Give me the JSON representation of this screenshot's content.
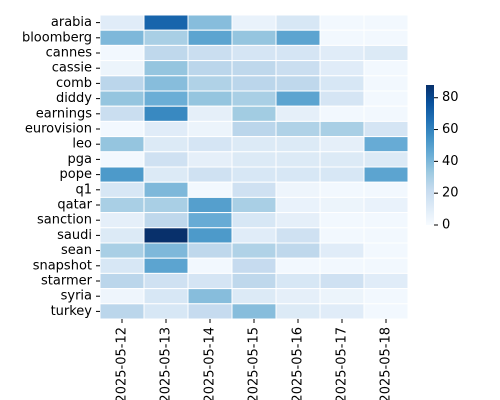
{
  "chart_data": {
    "type": "heatmap",
    "title": "",
    "xlabel": "",
    "ylabel": "",
    "x": [
      "2025-05-12",
      "2025-05-13",
      "2025-05-14",
      "2025-05-15",
      "2025-05-16",
      "2025-05-17",
      "2025-05-18"
    ],
    "y": [
      "arabia",
      "bloomberg",
      "cannes",
      "cassie",
      "comb",
      "diddy",
      "earnings",
      "eurovision",
      "leo",
      "pga",
      "pope",
      "q1",
      "qatar",
      "sanction",
      "saudi",
      "sean",
      "snapshot",
      "starmer",
      "syria",
      "turkey"
    ],
    "values": [
      [
        10,
        70,
        38,
        6,
        14,
        2,
        2
      ],
      [
        40,
        30,
        48,
        35,
        48,
        2,
        2
      ],
      [
        2,
        24,
        20,
        15,
        15,
        10,
        12
      ],
      [
        5,
        35,
        25,
        24,
        20,
        10,
        2
      ],
      [
        25,
        38,
        28,
        25,
        24,
        14,
        2
      ],
      [
        35,
        44,
        35,
        30,
        48,
        15,
        2
      ],
      [
        20,
        58,
        8,
        32,
        8,
        2,
        2
      ],
      [
        2,
        10,
        5,
        25,
        28,
        30,
        15
      ],
      [
        35,
        12,
        15,
        12,
        12,
        8,
        45
      ],
      [
        2,
        18,
        8,
        12,
        12,
        12,
        12
      ],
      [
        52,
        12,
        18,
        14,
        14,
        14,
        48
      ],
      [
        14,
        40,
        2,
        18,
        4,
        2,
        2
      ],
      [
        30,
        30,
        50,
        30,
        6,
        5,
        6
      ],
      [
        8,
        24,
        45,
        14,
        8,
        2,
        2
      ],
      [
        12,
        88,
        52,
        10,
        18,
        2,
        2
      ],
      [
        30,
        40,
        24,
        28,
        24,
        10,
        2
      ],
      [
        14,
        48,
        2,
        22,
        2,
        2,
        2
      ],
      [
        25,
        18,
        15,
        24,
        14,
        18,
        10
      ],
      [
        4,
        14,
        38,
        12,
        8,
        5,
        2
      ],
      [
        25,
        14,
        22,
        38,
        12,
        10,
        2
      ]
    ],
    "colorbar": {
      "min": 0,
      "max": 88,
      "ticks": [
        0,
        20,
        40,
        60,
        80
      ]
    },
    "colormap": "Blues",
    "grid": false,
    "legend": "colorbar-right",
    "colors": {
      "low": "#f7fbff",
      "high": "#08306b",
      "cell_border": "#ffffff"
    }
  }
}
